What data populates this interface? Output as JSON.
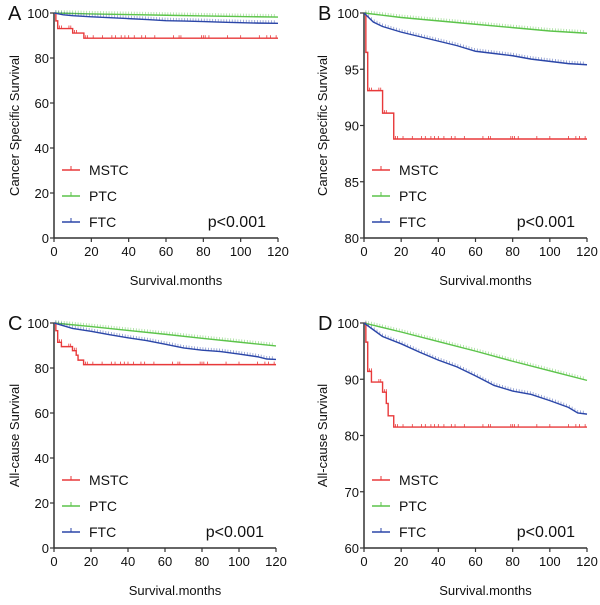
{
  "colors": {
    "MSTC": "#e8393a",
    "PTC": "#5cc44a",
    "FTC": "#2b46a8",
    "axis": "#333333"
  },
  "chart_data": [
    {
      "panel": "A",
      "type": "line",
      "title": "",
      "xlabel": "Survival.months",
      "ylabel": "Cancer Specific Survival",
      "xlim": [
        0,
        120
      ],
      "ylim": [
        0,
        100
      ],
      "xticks": [
        0,
        20,
        40,
        60,
        80,
        100,
        120
      ],
      "yticks": [
        0,
        20,
        40,
        60,
        80,
        100
      ],
      "grid": false,
      "legend_position": "bottom-left",
      "annotation": "p<0.001",
      "series": [
        {
          "name": "MSTC",
          "step": true,
          "x": [
            0,
            1,
            2,
            10,
            16,
            120
          ],
          "y": [
            100,
            96.5,
            93.1,
            91.1,
            88.8,
            88.8
          ]
        },
        {
          "name": "PTC",
          "step": false,
          "x": [
            0,
            20,
            40,
            60,
            80,
            100,
            120
          ],
          "y": [
            100,
            99.6,
            99.3,
            99.0,
            98.7,
            98.4,
            98.2
          ]
        },
        {
          "name": "FTC",
          "step": false,
          "x": [
            0,
            5,
            10,
            20,
            30,
            40,
            50,
            60,
            70,
            80,
            90,
            100,
            110,
            120
          ],
          "y": [
            100,
            99.2,
            98.8,
            98.3,
            97.9,
            97.5,
            97.1,
            96.6,
            96.4,
            96.2,
            95.9,
            95.7,
            95.5,
            95.4
          ]
        }
      ]
    },
    {
      "panel": "B",
      "type": "line",
      "title": "",
      "xlabel": "Survival.months",
      "ylabel": "Cancer Specific Survival",
      "xlim": [
        0,
        120
      ],
      "ylim": [
        80,
        100
      ],
      "xticks": [
        0,
        20,
        40,
        60,
        80,
        100,
        120
      ],
      "yticks": [
        80,
        85,
        90,
        95,
        100
      ],
      "grid": false,
      "legend_position": "bottom-left",
      "annotation": "p<0.001",
      "series": [
        {
          "name": "MSTC",
          "step": true,
          "x": [
            0,
            1,
            2,
            10,
            16,
            120
          ],
          "y": [
            100,
            96.5,
            93.1,
            91.1,
            88.8,
            88.8
          ]
        },
        {
          "name": "PTC",
          "step": false,
          "x": [
            0,
            20,
            40,
            60,
            80,
            100,
            120
          ],
          "y": [
            100,
            99.6,
            99.3,
            99.0,
            98.7,
            98.4,
            98.2
          ]
        },
        {
          "name": "FTC",
          "step": false,
          "x": [
            0,
            5,
            10,
            20,
            30,
            40,
            50,
            60,
            70,
            80,
            90,
            100,
            110,
            120
          ],
          "y": [
            100,
            99.2,
            98.8,
            98.3,
            97.9,
            97.5,
            97.1,
            96.6,
            96.4,
            96.2,
            95.9,
            95.7,
            95.5,
            95.4
          ]
        }
      ]
    },
    {
      "panel": "C",
      "type": "line",
      "title": "",
      "xlabel": "Survival.months",
      "ylabel": "All-cause Survival",
      "xlim": [
        0,
        120
      ],
      "ylim": [
        0,
        100
      ],
      "xticks": [
        0,
        20,
        40,
        60,
        80,
        100,
        120
      ],
      "yticks": [
        0,
        20,
        40,
        60,
        80,
        100
      ],
      "grid": false,
      "legend_position": "bottom-left",
      "annotation": "p<0.001",
      "series": [
        {
          "name": "MSTC",
          "step": true,
          "x": [
            0,
            1,
            2,
            4,
            10,
            12,
            13,
            16,
            120
          ],
          "y": [
            100,
            96.6,
            91.4,
            89.5,
            87.7,
            85.7,
            83.5,
            81.5,
            81.5
          ]
        },
        {
          "name": "PTC",
          "step": false,
          "x": [
            0,
            20,
            40,
            60,
            80,
            100,
            120
          ],
          "y": [
            100,
            98.4,
            96.7,
            95.0,
            93.2,
            91.5,
            89.8
          ]
        },
        {
          "name": "FTC",
          "step": false,
          "x": [
            0,
            5,
            10,
            20,
            30,
            40,
            50,
            60,
            70,
            80,
            90,
            100,
            110,
            115,
            120
          ],
          "y": [
            100,
            98.8,
            97.6,
            96.3,
            94.8,
            93.4,
            92.2,
            90.6,
            88.9,
            87.9,
            87.3,
            86.2,
            85.0,
            84.0,
            83.8
          ]
        }
      ]
    },
    {
      "panel": "D",
      "type": "line",
      "title": "",
      "xlabel": "Survival.months",
      "ylabel": "All-cause Survival",
      "xlim": [
        0,
        120
      ],
      "ylim": [
        60,
        100
      ],
      "xticks": [
        0,
        20,
        40,
        60,
        80,
        100,
        120
      ],
      "yticks": [
        60,
        70,
        80,
        90,
        100
      ],
      "grid": false,
      "legend_position": "bottom-left",
      "annotation": "p<0.001",
      "series": [
        {
          "name": "MSTC",
          "step": true,
          "x": [
            0,
            1,
            2,
            4,
            10,
            12,
            13,
            16,
            120
          ],
          "y": [
            100,
            96.6,
            91.4,
            89.5,
            87.7,
            85.7,
            83.5,
            81.5,
            81.5
          ]
        },
        {
          "name": "PTC",
          "step": false,
          "x": [
            0,
            20,
            40,
            60,
            80,
            100,
            120
          ],
          "y": [
            100,
            98.4,
            96.7,
            95.0,
            93.2,
            91.5,
            89.8
          ]
        },
        {
          "name": "FTC",
          "step": false,
          "x": [
            0,
            5,
            10,
            20,
            30,
            40,
            50,
            60,
            70,
            80,
            90,
            100,
            110,
            115,
            120
          ],
          "y": [
            100,
            98.8,
            97.6,
            96.3,
            94.8,
            93.4,
            92.2,
            90.6,
            88.9,
            87.9,
            87.3,
            86.2,
            85.0,
            84.0,
            83.8
          ]
        }
      ]
    }
  ]
}
